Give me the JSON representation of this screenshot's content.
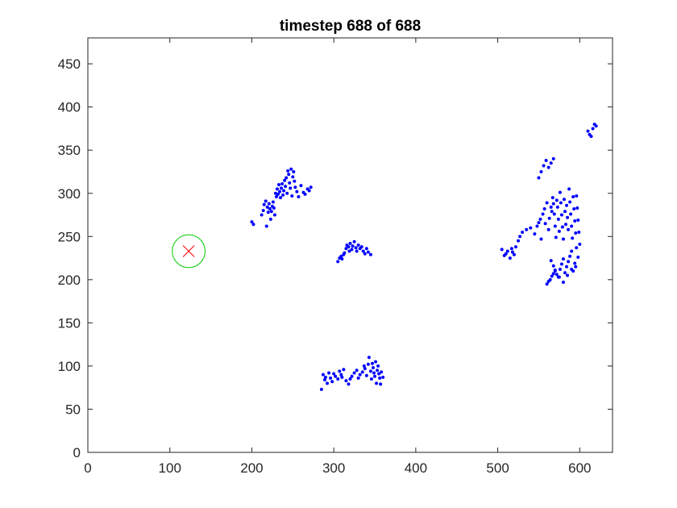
{
  "chart_data": {
    "type": "scatter",
    "title": "timestep 688 of 688",
    "xlabel": "",
    "ylabel": "",
    "xlim": [
      0,
      640
    ],
    "ylim": [
      0,
      480
    ],
    "x_ticks": [
      0,
      100,
      200,
      300,
      400,
      500,
      600
    ],
    "y_ticks": [
      0,
      50,
      100,
      150,
      200,
      250,
      300,
      350,
      400,
      450
    ],
    "grid": false,
    "box": true,
    "colors": {
      "points": "#0000ff",
      "marker_circle": "#00cc00",
      "marker_cross": "#ff0000",
      "axes": "#262626"
    },
    "target": {
      "x": 123,
      "y": 233,
      "circle_radius": 20
    },
    "series": [
      {
        "marker": "dot",
        "x": [
          200,
          202,
          212,
          214,
          215,
          217,
          218,
          219,
          220,
          221,
          222,
          223,
          224,
          225,
          226,
          227,
          228,
          229,
          230,
          231,
          232,
          233,
          234,
          235,
          236,
          237,
          238,
          239,
          240,
          241,
          242,
          243,
          244,
          245,
          246,
          247,
          248,
          249,
          250,
          251,
          252,
          253,
          255,
          257,
          260,
          263,
          265,
          268,
          270,
          272,
          305,
          307,
          309,
          310,
          312,
          313,
          315,
          316,
          318,
          319,
          320,
          322,
          323,
          325,
          327,
          328,
          330,
          332,
          334,
          336,
          338,
          340,
          342,
          345,
          285,
          287,
          289,
          290,
          292,
          294,
          296,
          298,
          300,
          302,
          305,
          307,
          309,
          310,
          312,
          315,
          318,
          320,
          322,
          325,
          328,
          330,
          332,
          335,
          337,
          338,
          340,
          342,
          343,
          345,
          346,
          347,
          348,
          349,
          350,
          351,
          352,
          353,
          354,
          355,
          356,
          357,
          358,
          360,
          505,
          508,
          510,
          512,
          515,
          517,
          518,
          520,
          522,
          525,
          527,
          530,
          535,
          540,
          545,
          548,
          550,
          552,
          553,
          555,
          557,
          558,
          560,
          562,
          563,
          565,
          566,
          567,
          568,
          569,
          570,
          571,
          572,
          573,
          574,
          575,
          576,
          577,
          578,
          579,
          580,
          581,
          582,
          583,
          584,
          585,
          586,
          587,
          588,
          589,
          590,
          591,
          592,
          593,
          594,
          595,
          596,
          597,
          598,
          599,
          600,
          565,
          568,
          570,
          572,
          574,
          576,
          578,
          580,
          582,
          584,
          586,
          588,
          590,
          592,
          594,
          596,
          598,
          560,
          562,
          564,
          566,
          568,
          570,
          575,
          580,
          585,
          590,
          595,
          550,
          553,
          556,
          559,
          562,
          565,
          568,
          610,
          612,
          614,
          616,
          618,
          620
        ],
        "y": [
          267,
          264,
          275,
          280,
          287,
          291,
          262,
          284,
          278,
          288,
          282,
          270,
          279,
          285,
          290,
          283,
          275,
          300,
          296,
          305,
          299,
          310,
          302,
          295,
          306,
          311,
          298,
          303,
          315,
          308,
          318,
          300,
          326,
          322,
          312,
          306,
          328,
          297,
          319,
          325,
          314,
          307,
          302,
          296,
          309,
          301,
          299,
          305,
          303,
          307,
          221,
          225,
          227,
          224,
          229,
          231,
          236,
          240,
          238,
          233,
          242,
          235,
          239,
          244,
          237,
          233,
          240,
          236,
          238,
          233,
          230,
          236,
          232,
          229,
          73,
          90,
          84,
          87,
          80,
          92,
          86,
          82,
          91,
          88,
          85,
          94,
          90,
          87,
          96,
          83,
          79,
          85,
          88,
          92,
          95,
          86,
          90,
          93,
          100,
          97,
          89,
          102,
          110,
          94,
          85,
          103,
          98,
          92,
          88,
          105,
          80,
          95,
          100,
          91,
          86,
          79,
          93,
          87,
          235,
          228,
          230,
          233,
          225,
          236,
          232,
          229,
          238,
          245,
          250,
          255,
          258,
          260,
          253,
          262,
          266,
          270,
          247,
          276,
          282,
          265,
          289,
          258,
          271,
          284,
          279,
          295,
          288,
          276,
          262,
          249,
          292,
          284,
          270,
          256,
          301,
          289,
          275,
          261,
          247,
          293,
          279,
          264,
          286,
          272,
          258,
          305,
          290,
          276,
          262,
          248,
          296,
          282,
          268,
          254,
          297,
          283,
          269,
          255,
          241,
          222,
          216,
          211,
          206,
          203,
          212,
          218,
          224,
          208,
          215,
          221,
          227,
          233,
          210,
          219,
          237,
          226,
          195,
          198,
          200,
          204,
          207,
          210,
          203,
          197,
          205,
          212,
          215,
          318,
          325,
          332,
          338,
          330,
          335,
          340,
          372,
          368,
          366,
          375,
          380,
          378
        ]
      }
    ]
  }
}
